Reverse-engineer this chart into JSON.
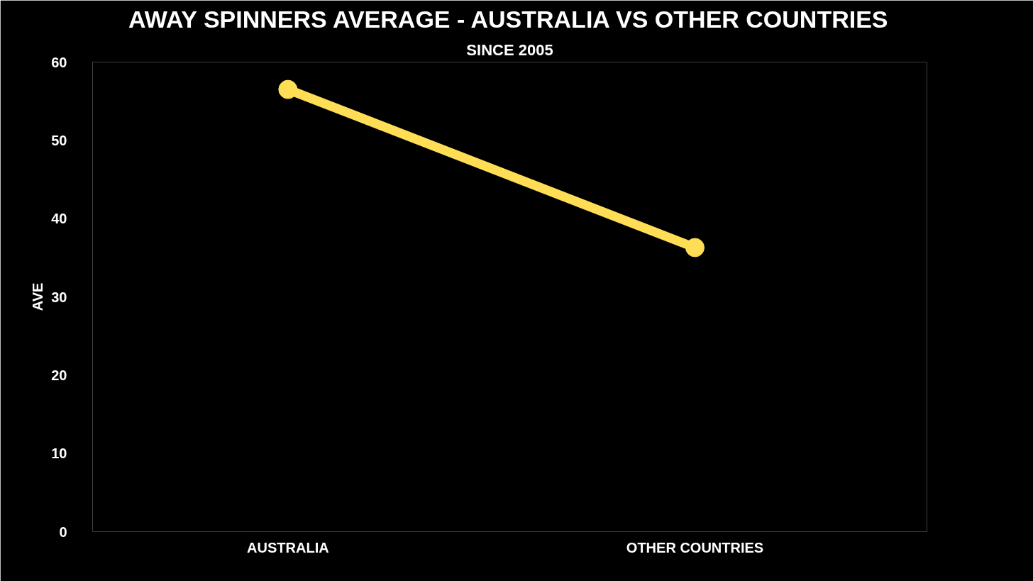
{
  "chart_data": {
    "type": "line",
    "title": "AWAY SPINNERS AVERAGE - AUSTRALIA VS OTHER COUNTRIES",
    "subtitle": "SINCE 2005",
    "ylabel": "AVE",
    "categories": [
      "AUSTRALIA",
      "OTHER COUNTRIES"
    ],
    "series": [
      {
        "color": "#ffdd55",
        "values": [
          56.5,
          36.3
        ]
      }
    ],
    "ylim": [
      0,
      60
    ],
    "yticks": [
      0,
      10,
      20,
      30,
      40,
      50,
      60
    ],
    "grid": false,
    "marker": "circle",
    "line_style": "solid"
  }
}
